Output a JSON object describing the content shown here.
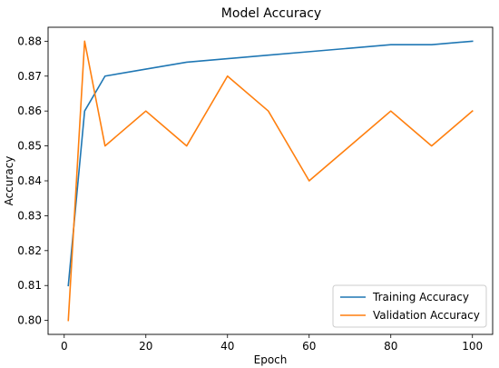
{
  "chart_data": {
    "type": "line",
    "title": "Model Accuracy",
    "xlabel": "Epoch",
    "ylabel": "Accuracy",
    "xlim": [
      -3.95,
      104.95
    ],
    "ylim": [
      0.796,
      0.884
    ],
    "xticks": [
      0,
      20,
      40,
      60,
      80,
      100
    ],
    "xtick_labels": [
      "0",
      "20",
      "40",
      "60",
      "80",
      "100"
    ],
    "yticks": [
      0.8,
      0.81,
      0.82,
      0.83,
      0.84,
      0.85,
      0.86,
      0.87,
      0.88
    ],
    "ytick_labels": [
      "0.80",
      "0.81",
      "0.82",
      "0.83",
      "0.84",
      "0.85",
      "0.86",
      "0.87",
      "0.88"
    ],
    "grid": false,
    "legend_position": "lower-right",
    "series": [
      {
        "name": "Training Accuracy",
        "color": "#1f77b4",
        "x": [
          1,
          5,
          10,
          20,
          30,
          40,
          50,
          60,
          70,
          80,
          90,
          100
        ],
        "y": [
          0.81,
          0.86,
          0.87,
          0.872,
          0.874,
          0.875,
          0.876,
          0.877,
          0.878,
          0.879,
          0.879,
          0.88
        ]
      },
      {
        "name": "Validation Accuracy",
        "color": "#ff7f0e",
        "x": [
          1,
          5,
          10,
          20,
          30,
          40,
          50,
          60,
          70,
          80,
          90,
          100
        ],
        "y": [
          0.8,
          0.88,
          0.85,
          0.86,
          0.85,
          0.87,
          0.86,
          0.84,
          0.85,
          0.86,
          0.85,
          0.86
        ]
      }
    ]
  }
}
